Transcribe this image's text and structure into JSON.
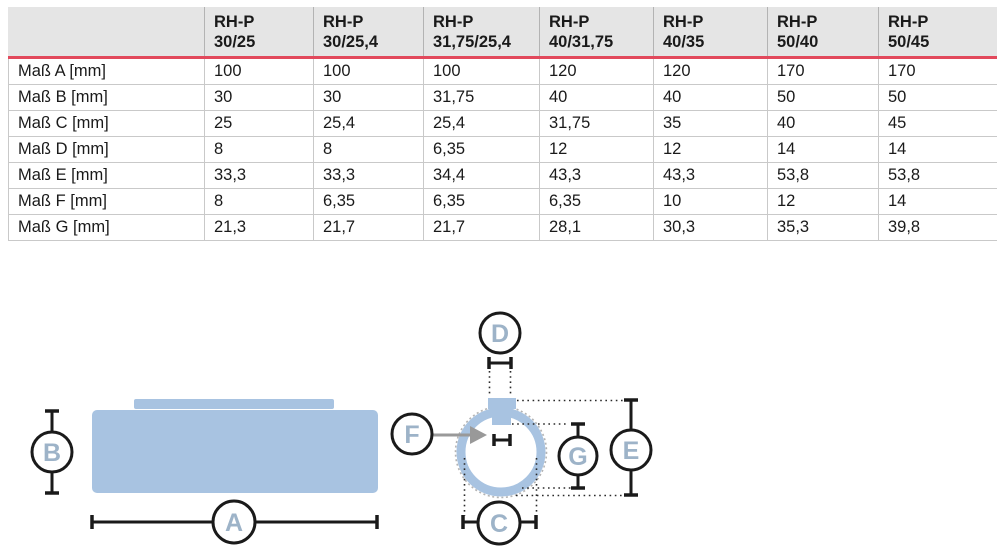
{
  "colors": {
    "accent_red": "#e2495c",
    "header_bg": "#e5e5e5",
    "border_light": "#c9c9c9",
    "border_header": "#b3b3b3",
    "part_blue": "#a8c3e1",
    "label_blue": "#9db3c8",
    "arrow_gray": "#999999",
    "ink": "#1a1a1a"
  },
  "table": {
    "columns": [
      {
        "line1": "RH-P",
        "line2": "30/25"
      },
      {
        "line1": "RH-P",
        "line2": "30/25,4"
      },
      {
        "line1": "RH-P",
        "line2": "31,75/25,4"
      },
      {
        "line1": "RH-P",
        "line2": "40/31,75"
      },
      {
        "line1": "RH-P",
        "line2": "40/35"
      },
      {
        "line1": "RH-P",
        "line2": "50/40"
      },
      {
        "line1": "RH-P",
        "line2": "50/45"
      }
    ],
    "rows": [
      {
        "label": "Maß A [mm]",
        "values": [
          "100",
          "100",
          "100",
          "120",
          "120",
          "170",
          "170"
        ]
      },
      {
        "label": "Maß B [mm]",
        "values": [
          "30",
          "30",
          "31,75",
          "40",
          "40",
          "50",
          "50"
        ]
      },
      {
        "label": "Maß C [mm]",
        "values": [
          "25",
          "25,4",
          "25,4",
          "31,75",
          "35",
          "40",
          "45"
        ]
      },
      {
        "label": "Maß D [mm]",
        "values": [
          "8",
          "8",
          "6,35",
          "12",
          "12",
          "14",
          "14"
        ]
      },
      {
        "label": "Maß E [mm]",
        "values": [
          "33,3",
          "33,3",
          "34,4",
          "43,3",
          "43,3",
          "53,8",
          "53,8"
        ]
      },
      {
        "label": "Maß F [mm]",
        "values": [
          "8",
          "6,35",
          "6,35",
          "6,35",
          "10",
          "12",
          "14"
        ]
      },
      {
        "label": "Maß G [mm]",
        "values": [
          "21,3",
          "21,7",
          "21,7",
          "28,1",
          "30,3",
          "35,3",
          "39,8"
        ]
      }
    ]
  },
  "diagram": {
    "labels": {
      "A": "A",
      "B": "B",
      "C": "C",
      "D": "D",
      "E": "E",
      "F": "F",
      "G": "G"
    }
  }
}
